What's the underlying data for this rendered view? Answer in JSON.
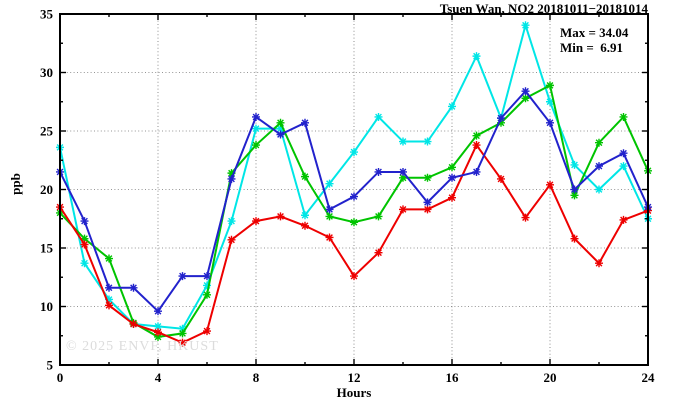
{
  "header": {
    "title": "Tsuen Wan, NO2 20181011−20181014"
  },
  "stats": {
    "max_label": "Max = 34.04",
    "min_label": "Min =  6.91"
  },
  "watermark": "© 2025 ENVF, HKUST",
  "chart_data": {
    "type": "line",
    "title": "Tsuen Wan, NO2 20181011−20181014",
    "xlabel": "Hours",
    "ylabel": "ppb",
    "xlim": [
      0,
      24
    ],
    "ylim": [
      5,
      35
    ],
    "xticks": [
      0,
      4,
      8,
      12,
      16,
      20,
      24
    ],
    "yticks": [
      5,
      10,
      15,
      20,
      25,
      30,
      35
    ],
    "x_minor_step": 2,
    "y_minor_step": 2.5,
    "grid": true,
    "legend": "none",
    "marker": "asterisk",
    "max": 34.04,
    "min": 6.91,
    "x": [
      0,
      1,
      2,
      3,
      4,
      5,
      6,
      7,
      8,
      9,
      10,
      11,
      12,
      13,
      14,
      15,
      16,
      17,
      18,
      19,
      20,
      21,
      22,
      23,
      24
    ],
    "series": [
      {
        "name": "cyan",
        "color": "#00e6e6",
        "values": [
          23.6,
          13.7,
          10.6,
          8.5,
          8.3,
          8.1,
          11.8,
          17.3,
          25.2,
          25.2,
          17.8,
          20.5,
          23.2,
          26.2,
          24.1,
          24.1,
          27.1,
          31.4,
          26.1,
          34.04,
          27.5,
          22.1,
          20.0,
          22.0,
          17.5
        ]
      },
      {
        "name": "green",
        "color": "#00c400",
        "values": [
          18.0,
          15.8,
          14.1,
          8.6,
          7.4,
          7.7,
          11.0,
          21.4,
          23.8,
          25.7,
          21.1,
          17.7,
          17.2,
          17.7,
          21.0,
          21.0,
          21.9,
          24.6,
          25.7,
          27.8,
          28.9,
          19.5,
          24.0,
          26.2,
          21.6
        ]
      },
      {
        "name": "red",
        "color": "#ee0000",
        "values": [
          18.5,
          15.3,
          10.1,
          8.5,
          7.8,
          6.91,
          7.9,
          15.7,
          17.3,
          17.7,
          16.9,
          15.9,
          12.6,
          14.6,
          18.3,
          18.3,
          19.3,
          23.8,
          20.9,
          17.6,
          20.4,
          15.8,
          13.7,
          17.4,
          18.2
        ]
      },
      {
        "name": "blue",
        "color": "#2222cc",
        "values": [
          21.5,
          17.3,
          11.6,
          11.6,
          9.6,
          12.6,
          12.6,
          20.9,
          26.2,
          24.7,
          25.7,
          18.3,
          19.4,
          21.5,
          21.5,
          18.9,
          21.0,
          21.5,
          26.1,
          28.4,
          25.7,
          20.0,
          22.0,
          23.1,
          18.5
        ]
      }
    ]
  }
}
